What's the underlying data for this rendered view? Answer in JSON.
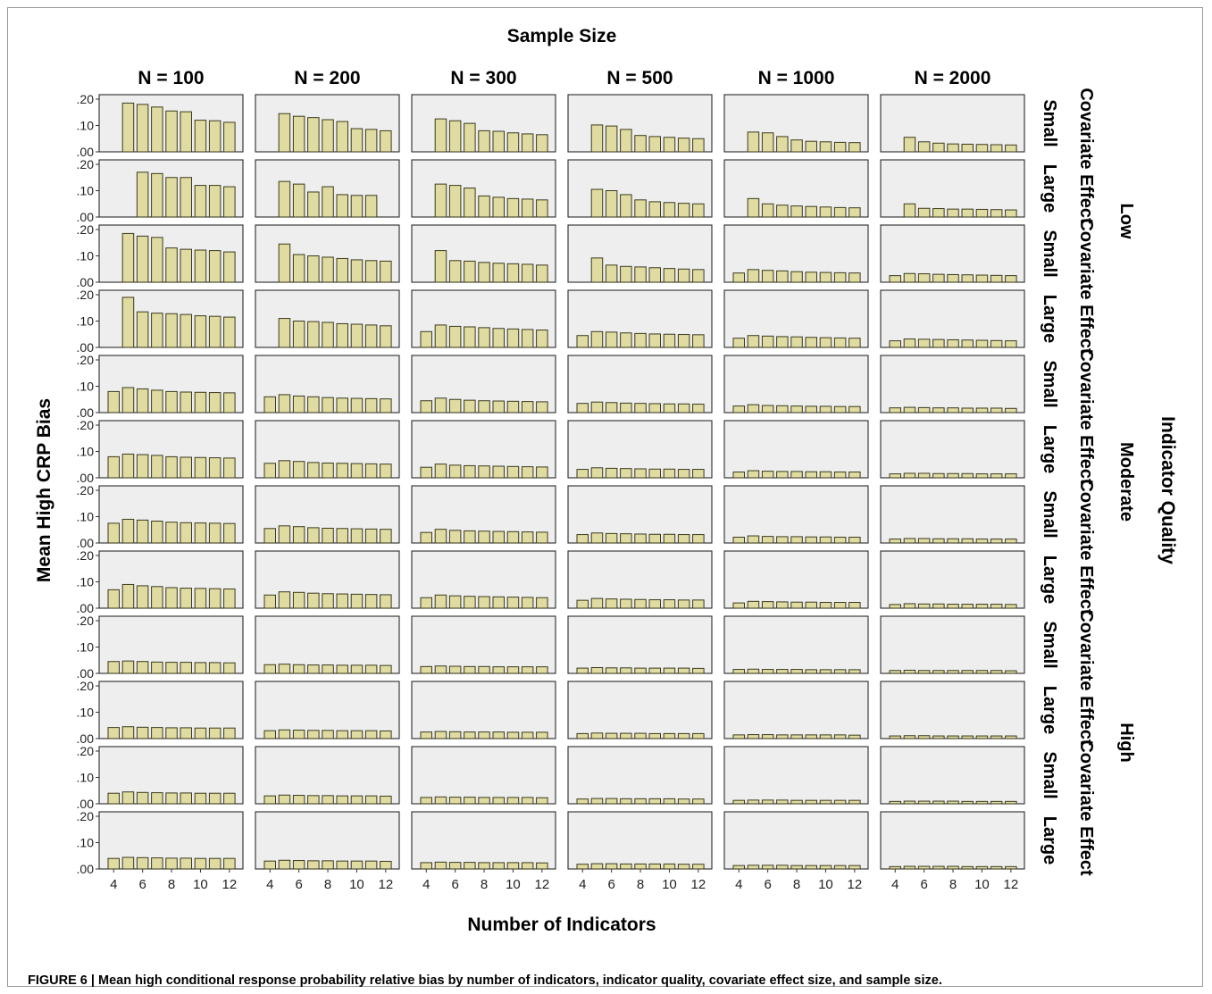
{
  "chart_data": {
    "type": "bar",
    "title": "Sample Size",
    "xlabel": "Number of Indicators",
    "ylabel": "Mean High CRP Bias",
    "right_outer_label": "Indicator Quality",
    "x_categories": [
      4,
      5,
      6,
      7,
      8,
      9,
      10,
      11,
      12
    ],
    "x_tick_labels": [
      "4",
      "6",
      "8",
      "10",
      "12"
    ],
    "ylim": [
      0,
      0.2
    ],
    "y_tick_labels": [
      ".00",
      ".10",
      ".20"
    ],
    "bar_color": "#e0dba0",
    "panel_background": "#eeeeee",
    "columns": [
      "N = 100",
      "N = 200",
      "N = 300",
      "N = 500",
      "N = 1000",
      "N = 2000"
    ],
    "quality_groups": [
      "Low",
      "Moderate",
      "High"
    ],
    "covariate_label": "Covariate Effect",
    "covariate_levels": [
      "Small",
      "Large"
    ],
    "panels": [
      [
        [
          null,
          0.185,
          0.18,
          0.17,
          0.155,
          0.152,
          0.12,
          0.118,
          0.112
        ],
        [
          null,
          0.145,
          0.135,
          0.13,
          0.122,
          0.115,
          0.088,
          0.085,
          0.08
        ],
        [
          null,
          0.125,
          0.118,
          0.108,
          0.08,
          0.078,
          0.072,
          0.068,
          0.065
        ],
        [
          null,
          0.102,
          0.098,
          0.085,
          0.062,
          0.058,
          0.055,
          0.052,
          0.05
        ],
        [
          null,
          0.075,
          0.072,
          0.058,
          0.045,
          0.04,
          0.038,
          0.036,
          0.035
        ],
        [
          null,
          0.055,
          0.038,
          0.033,
          0.03,
          0.029,
          0.028,
          0.027,
          0.026
        ]
      ],
      [
        [
          null,
          null,
          0.17,
          0.165,
          0.15,
          0.15,
          0.12,
          0.12,
          0.115
        ],
        [
          null,
          0.135,
          0.125,
          0.095,
          0.115,
          0.085,
          0.082,
          0.082,
          null
        ],
        [
          null,
          0.125,
          0.12,
          0.11,
          0.08,
          0.075,
          0.07,
          0.068,
          0.065
        ],
        [
          null,
          0.105,
          0.1,
          0.085,
          0.065,
          0.058,
          0.055,
          0.052,
          0.05
        ],
        [
          null,
          0.07,
          0.05,
          0.045,
          0.042,
          0.04,
          0.038,
          0.036,
          0.035
        ],
        [
          null,
          0.05,
          0.033,
          0.032,
          0.03,
          0.03,
          0.029,
          0.028,
          0.027
        ]
      ],
      [
        [
          null,
          0.185,
          0.175,
          0.17,
          0.13,
          0.125,
          0.122,
          0.12,
          0.115
        ],
        [
          null,
          0.145,
          0.105,
          0.1,
          0.095,
          0.09,
          0.085,
          0.082,
          0.08
        ],
        [
          null,
          0.12,
          0.082,
          0.08,
          0.075,
          0.072,
          0.07,
          0.068,
          0.065
        ],
        [
          null,
          0.092,
          0.065,
          0.06,
          0.058,
          0.055,
          0.052,
          0.05,
          0.048
        ],
        [
          0.035,
          0.048,
          0.045,
          0.043,
          0.04,
          0.038,
          0.037,
          0.036,
          0.035
        ],
        [
          0.025,
          0.033,
          0.032,
          0.03,
          0.029,
          0.028,
          0.027,
          0.026,
          0.025
        ]
      ],
      [
        [
          null,
          0.19,
          0.135,
          0.13,
          0.128,
          0.125,
          0.12,
          0.118,
          0.115
        ],
        [
          null,
          0.11,
          0.1,
          0.098,
          0.095,
          0.09,
          0.088,
          0.085,
          0.082
        ],
        [
          0.06,
          0.085,
          0.08,
          0.078,
          0.075,
          0.072,
          0.07,
          0.068,
          0.066
        ],
        [
          0.045,
          0.06,
          0.058,
          0.055,
          0.053,
          0.051,
          0.05,
          0.049,
          0.048
        ],
        [
          0.035,
          0.045,
          0.043,
          0.041,
          0.04,
          0.038,
          0.037,
          0.036,
          0.035
        ],
        [
          0.025,
          0.032,
          0.031,
          0.03,
          0.029,
          0.028,
          0.027,
          0.026,
          0.025
        ]
      ],
      [
        [
          0.08,
          0.095,
          0.09,
          0.085,
          0.08,
          0.078,
          0.077,
          0.076,
          0.075
        ],
        [
          0.06,
          0.068,
          0.063,
          0.06,
          0.057,
          0.055,
          0.054,
          0.053,
          0.052
        ],
        [
          0.045,
          0.055,
          0.05,
          0.047,
          0.045,
          0.044,
          0.043,
          0.042,
          0.041
        ],
        [
          0.035,
          0.04,
          0.038,
          0.036,
          0.035,
          0.034,
          0.033,
          0.033,
          0.032
        ],
        [
          0.025,
          0.03,
          0.027,
          0.026,
          0.025,
          0.024,
          0.024,
          0.023,
          0.023
        ],
        [
          0.018,
          0.02,
          0.019,
          0.018,
          0.018,
          0.017,
          0.017,
          0.017,
          0.016
        ]
      ],
      [
        [
          0.08,
          0.09,
          0.088,
          0.085,
          0.08,
          0.078,
          0.077,
          0.076,
          0.075
        ],
        [
          0.055,
          0.065,
          0.062,
          0.058,
          0.056,
          0.055,
          0.054,
          0.053,
          0.052
        ],
        [
          0.04,
          0.052,
          0.048,
          0.046,
          0.045,
          0.044,
          0.043,
          0.042,
          0.041
        ],
        [
          0.032,
          0.038,
          0.036,
          0.035,
          0.034,
          0.033,
          0.033,
          0.032,
          0.032
        ],
        [
          0.022,
          0.027,
          0.025,
          0.024,
          0.024,
          0.023,
          0.023,
          0.022,
          0.022
        ],
        [
          0.015,
          0.017,
          0.017,
          0.016,
          0.016,
          0.016,
          0.015,
          0.015,
          0.015
        ]
      ],
      [
        [
          0.075,
          0.09,
          0.087,
          0.083,
          0.079,
          0.077,
          0.076,
          0.075,
          0.074
        ],
        [
          0.055,
          0.065,
          0.062,
          0.058,
          0.056,
          0.055,
          0.054,
          0.053,
          0.052
        ],
        [
          0.04,
          0.052,
          0.048,
          0.046,
          0.045,
          0.044,
          0.043,
          0.042,
          0.041
        ],
        [
          0.032,
          0.038,
          0.036,
          0.035,
          0.034,
          0.033,
          0.033,
          0.032,
          0.032
        ],
        [
          0.022,
          0.027,
          0.025,
          0.024,
          0.024,
          0.023,
          0.023,
          0.022,
          0.022
        ],
        [
          0.015,
          0.017,
          0.017,
          0.016,
          0.016,
          0.016,
          0.015,
          0.015,
          0.015
        ]
      ],
      [
        [
          0.07,
          0.09,
          0.085,
          0.082,
          0.078,
          0.076,
          0.075,
          0.074,
          0.073
        ],
        [
          0.05,
          0.062,
          0.06,
          0.057,
          0.055,
          0.054,
          0.053,
          0.052,
          0.051
        ],
        [
          0.04,
          0.05,
          0.047,
          0.045,
          0.044,
          0.043,
          0.042,
          0.041,
          0.04
        ],
        [
          0.03,
          0.037,
          0.035,
          0.034,
          0.033,
          0.032,
          0.032,
          0.031,
          0.031
        ],
        [
          0.02,
          0.026,
          0.025,
          0.024,
          0.023,
          0.023,
          0.022,
          0.022,
          0.022
        ],
        [
          0.014,
          0.017,
          0.016,
          0.016,
          0.015,
          0.015,
          0.015,
          0.015,
          0.014
        ]
      ],
      [
        [
          0.045,
          0.047,
          0.045,
          0.043,
          0.042,
          0.042,
          0.041,
          0.041,
          0.04
        ],
        [
          0.033,
          0.035,
          0.033,
          0.032,
          0.032,
          0.031,
          0.031,
          0.031,
          0.03
        ],
        [
          0.026,
          0.028,
          0.027,
          0.026,
          0.026,
          0.025,
          0.025,
          0.025,
          0.025
        ],
        [
          0.02,
          0.022,
          0.021,
          0.021,
          0.02,
          0.02,
          0.02,
          0.02,
          0.019
        ],
        [
          0.015,
          0.016,
          0.015,
          0.015,
          0.015,
          0.014,
          0.014,
          0.014,
          0.014
        ],
        [
          0.011,
          0.012,
          0.011,
          0.011,
          0.011,
          0.011,
          0.011,
          0.011,
          0.01
        ]
      ],
      [
        [
          0.042,
          0.045,
          0.043,
          0.042,
          0.041,
          0.041,
          0.04,
          0.04,
          0.04
        ],
        [
          0.03,
          0.033,
          0.032,
          0.031,
          0.031,
          0.03,
          0.03,
          0.03,
          0.029
        ],
        [
          0.025,
          0.027,
          0.026,
          0.025,
          0.025,
          0.025,
          0.024,
          0.024,
          0.024
        ],
        [
          0.019,
          0.021,
          0.02,
          0.02,
          0.02,
          0.019,
          0.019,
          0.019,
          0.019
        ],
        [
          0.014,
          0.015,
          0.015,
          0.014,
          0.014,
          0.014,
          0.014,
          0.014,
          0.013
        ],
        [
          0.01,
          0.011,
          0.011,
          0.01,
          0.01,
          0.01,
          0.01,
          0.01,
          0.01
        ]
      ],
      [
        [
          0.04,
          0.045,
          0.043,
          0.042,
          0.041,
          0.041,
          0.04,
          0.04,
          0.04
        ],
        [
          0.03,
          0.033,
          0.032,
          0.031,
          0.031,
          0.03,
          0.03,
          0.03,
          0.029
        ],
        [
          0.024,
          0.026,
          0.025,
          0.025,
          0.024,
          0.024,
          0.024,
          0.024,
          0.023
        ],
        [
          0.018,
          0.02,
          0.02,
          0.019,
          0.019,
          0.019,
          0.019,
          0.018,
          0.018
        ],
        [
          0.013,
          0.014,
          0.014,
          0.014,
          0.013,
          0.013,
          0.013,
          0.013,
          0.013
        ],
        [
          0.009,
          0.01,
          0.01,
          0.01,
          0.01,
          0.009,
          0.009,
          0.009,
          0.009
        ]
      ],
      [
        [
          0.04,
          0.044,
          0.043,
          0.042,
          0.041,
          0.041,
          0.04,
          0.04,
          0.04
        ],
        [
          0.03,
          0.033,
          0.032,
          0.031,
          0.031,
          0.03,
          0.03,
          0.03,
          0.029
        ],
        [
          0.024,
          0.026,
          0.025,
          0.025,
          0.024,
          0.024,
          0.024,
          0.024,
          0.023
        ],
        [
          0.018,
          0.02,
          0.02,
          0.019,
          0.019,
          0.019,
          0.019,
          0.018,
          0.018
        ],
        [
          0.013,
          0.014,
          0.014,
          0.014,
          0.013,
          0.013,
          0.013,
          0.013,
          0.013
        ],
        [
          0.009,
          0.01,
          0.01,
          0.01,
          0.01,
          0.009,
          0.009,
          0.009,
          0.009
        ]
      ]
    ]
  },
  "caption": "FIGURE 6 | Mean high conditional response probability relative bias by number of indicators, indicator quality, covariate effect size, and sample size."
}
